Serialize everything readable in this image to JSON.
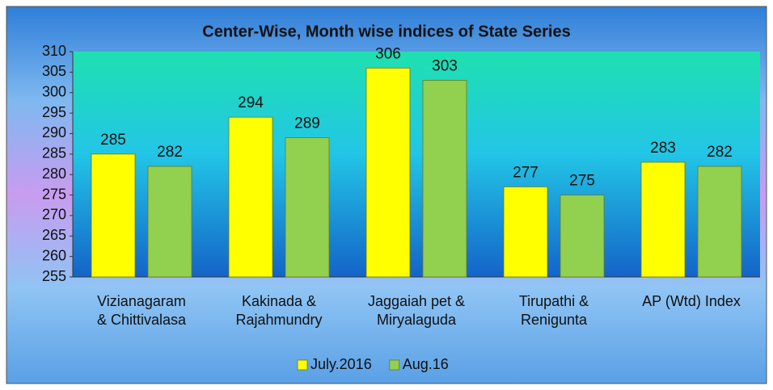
{
  "chart_data": {
    "type": "bar",
    "title": "Center-Wise, Month wise indices of State Series",
    "categories": [
      "Vizianagaram\n& Chittivalasa",
      "Kakinada &\nRajahmundry",
      "Jaggaiah pet &\nMiryalaguda",
      "Tirupathi &\nRenigunta",
      "AP (Wtd) Index"
    ],
    "series": [
      {
        "name": "July.2016",
        "color": "#ffff00",
        "values": [
          285,
          294,
          306,
          277,
          283
        ]
      },
      {
        "name": "Aug.16",
        "color": "#92d050",
        "values": [
          282,
          289,
          303,
          275,
          282
        ]
      }
    ],
    "ylim": [
      255,
      310
    ],
    "yticks": [
      255,
      260,
      265,
      270,
      275,
      280,
      285,
      290,
      295,
      300,
      305,
      310
    ],
    "legend": "bottom"
  }
}
